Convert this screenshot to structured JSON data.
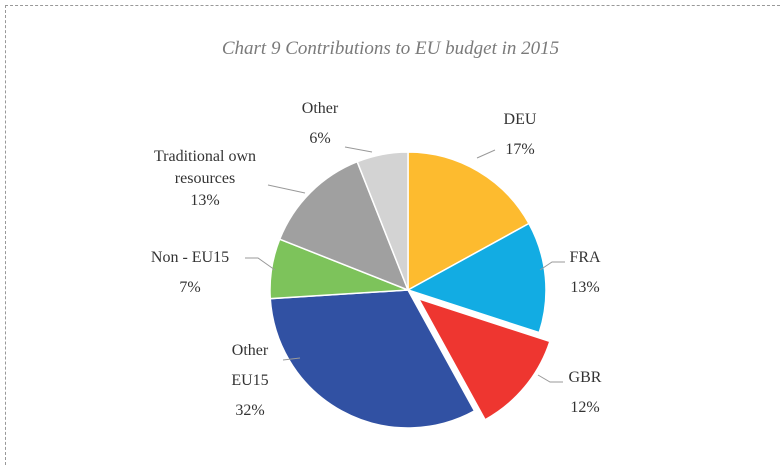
{
  "chart_data": {
    "type": "pie",
    "title": "Chart 9 Contributions to EU budget in 2015",
    "categories": [
      "DEU",
      "FRA",
      "GBR",
      "Other EU15",
      "Non - EU15",
      "Traditional own resources",
      "Other"
    ],
    "values": [
      17,
      13,
      12,
      32,
      7,
      13,
      6
    ],
    "value_labels": [
      "17%",
      "13%",
      "12%",
      "32%",
      "7%",
      "13%",
      "6%"
    ],
    "colors": [
      "#fdbb2f",
      "#12ace3",
      "#ee3630",
      "#3151a3",
      "#7dc35b",
      "#a0a0a0",
      "#d3d3d3"
    ],
    "explode": [
      0,
      0,
      0.1,
      0,
      0,
      0,
      0
    ]
  }
}
